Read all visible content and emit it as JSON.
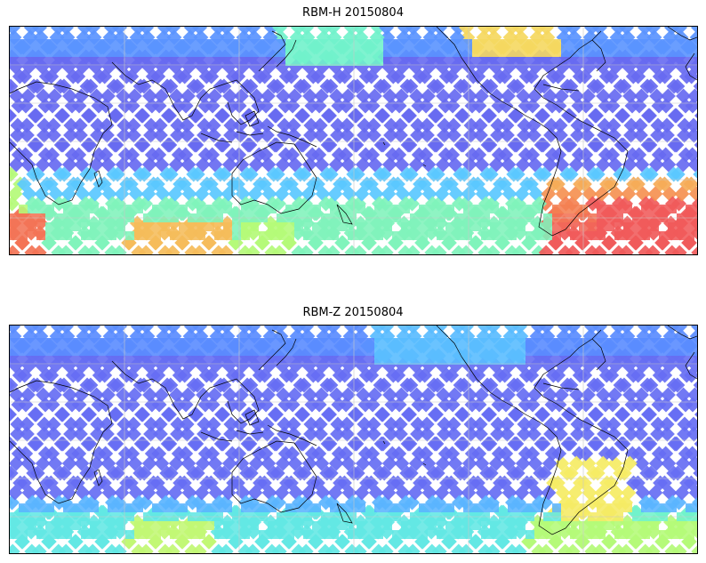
{
  "panels": [
    {
      "title": "RBM-H 20150804",
      "variant": "H"
    },
    {
      "title": "RBM-Z 20150804",
      "variant": "Z"
    }
  ],
  "colors": {
    "low": "#6a63ee",
    "mid_low": "#5aa6ff",
    "mid": "#63f0e6",
    "mid_high": "#f5f066",
    "high": "#f5645c",
    "max": "#b06060",
    "coast": "#000000",
    "grid": "#c8c8c8"
  }
}
